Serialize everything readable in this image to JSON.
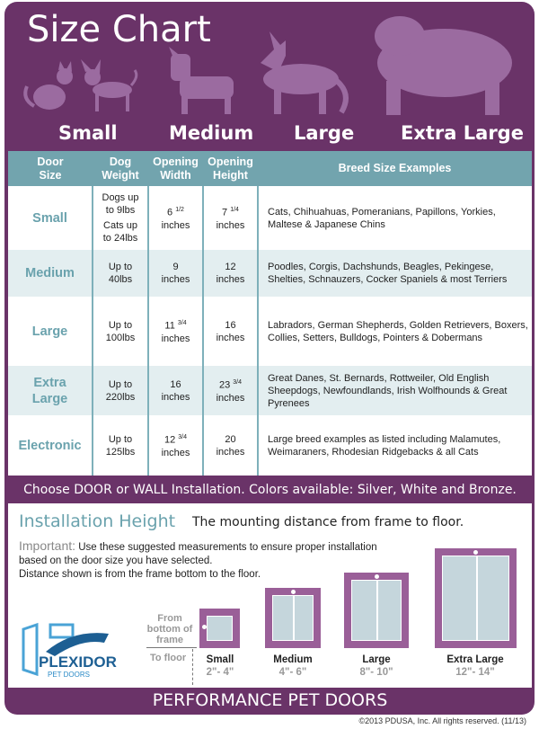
{
  "title": "Size Chart",
  "size_labels": [
    "Small",
    "Medium",
    "Large",
    "Extra Large"
  ],
  "colors": {
    "purple": "#6a3368",
    "teal": "#72a4ae",
    "silhouette": "#9b6ba0",
    "door": "#9a5f98"
  },
  "table": {
    "headers": [
      [
        "Door",
        "Size"
      ],
      [
        "Dog",
        "Weight"
      ],
      [
        "Opening",
        "Width"
      ],
      [
        "Opening",
        "Height"
      ],
      [
        "Breed Size Examples"
      ]
    ],
    "rows": [
      {
        "size": "Small",
        "weight": [
          "Dogs up to 9lbs",
          "Cats up to 24lbs"
        ],
        "width": "6",
        "width_frac": "1/2",
        "height": "7",
        "height_frac": "1/4",
        "unit": "inches",
        "breeds": "Cats, Chihuahuas, Pomeranians, Papillons, Yorkies, Maltese & Japanese Chins"
      },
      {
        "size": "Medium",
        "weight": [
          "Up to 40lbs"
        ],
        "width": "9",
        "width_frac": "",
        "height": "12",
        "height_frac": "",
        "unit": "inches",
        "breeds": "Poodles, Corgis, Dachshunds, Beagles, Pekingese, Shelties, Schnauzers, Cocker Spaniels & most Terriers"
      },
      {
        "size": "Large",
        "weight": [
          "Up to 100lbs"
        ],
        "width": "11",
        "width_frac": "3/4",
        "height": "16",
        "height_frac": "",
        "unit": "inches",
        "breeds": "Labradors, German Shepherds, Golden Retrievers, Boxers, Collies, Setters, Bulldogs, Pointers & Dobermans"
      },
      {
        "size": "Extra Large",
        "weight": [
          "Up to 220lbs"
        ],
        "width": "16",
        "width_frac": "",
        "height": "23",
        "height_frac": "3/4",
        "unit": "inches",
        "breeds": "Great Danes, St. Bernards, Rottweiler, Old English Sheepdogs, Newfoundlands, Irish Wolfhounds & Great Pyrenees"
      },
      {
        "size": "Electronic",
        "weight": [
          "Up to 125lbs"
        ],
        "width": "12",
        "width_frac": "3/4",
        "height": "20",
        "height_frac": "",
        "unit": "inches",
        "breeds": "Large breed examples as listed including Malamutes, Weimaraners, Rhodesian Ridgebacks & all Cats"
      }
    ]
  },
  "band": "Choose DOOR or WALL Installation. Colors available: Silver, White and Bronze.",
  "install": {
    "heading": "Installation Height",
    "subheading": "The mounting distance from frame to floor.",
    "important_label": "Important:",
    "important_text": "Use these suggested measurements to ensure proper installation based on the door size you have selected.",
    "distance_note": "Distance shown is from the frame bottom to the floor.",
    "from_label": "From bottom of frame",
    "to_label": "To floor",
    "doors": [
      {
        "label": "Small",
        "range": "2\"- 4\""
      },
      {
        "label": "Medium",
        "range": "4\"- 6\""
      },
      {
        "label": "Large",
        "range": "8\"- 10\""
      },
      {
        "label": "Extra Large",
        "range": "12\"- 14\""
      }
    ]
  },
  "logo": {
    "name": "PLEXIDOR",
    "sub": "PET DOORS"
  },
  "footer": "PERFORMANCE PET DOORS",
  "copyright": "©2013 PDUSA, Inc. All rights reserved. (11/13)"
}
